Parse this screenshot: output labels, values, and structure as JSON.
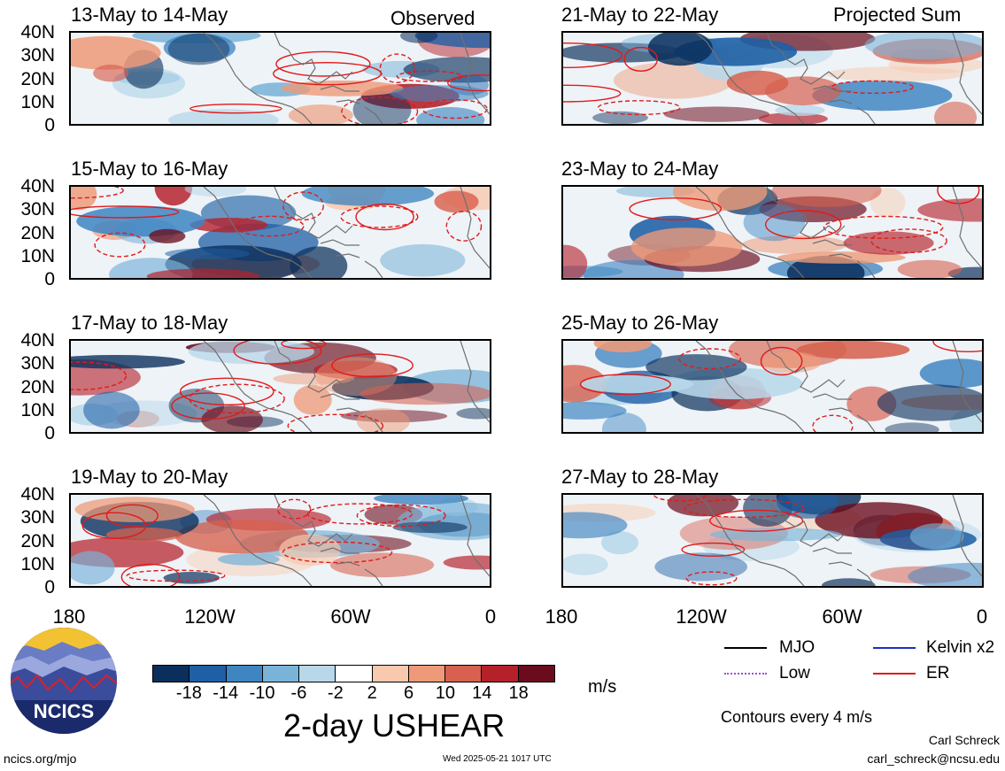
{
  "header": {
    "left_tag": "Observed",
    "right_tag": "Projected Sum"
  },
  "panels_left": [
    {
      "title": "13-May to 14-May"
    },
    {
      "title": "15-May to 16-May"
    },
    {
      "title": "17-May to 18-May"
    },
    {
      "title": "19-May to 20-May"
    }
  ],
  "panels_right": [
    {
      "title": "21-May to 22-May"
    },
    {
      "title": "23-May to 24-May"
    },
    {
      "title": "25-May to 26-May"
    },
    {
      "title": "27-May to 28-May"
    }
  ],
  "y_axis": [
    "40N",
    "30N",
    "20N",
    "10N",
    "0"
  ],
  "x_axis": [
    "180",
    "120W",
    "60W",
    "0"
  ],
  "colorbar": {
    "labels": [
      "-18",
      "-14",
      "-10",
      "-6",
      "-2",
      "2",
      "6",
      "10",
      "14",
      "18"
    ],
    "colors": [
      "#0b2f5c",
      "#1e5fa5",
      "#3f85c2",
      "#7ab3d8",
      "#b8d8ea",
      "#ffffff",
      "#f8c9ae",
      "#ee9a78",
      "#d7604e",
      "#b5212b",
      "#6b0c1c"
    ],
    "units": "m/s"
  },
  "main_title": "2-day USHEAR",
  "legend": {
    "items": [
      {
        "label": "MJO",
        "color": "#000000"
      },
      {
        "label": "Kelvin x2",
        "color": "#1c2fc4"
      },
      {
        "label": "Low",
        "color": "#9b4fd6"
      },
      {
        "label": "ER",
        "color": "#e21a1a"
      }
    ],
    "contour_note": "Contours every 4 m/s"
  },
  "logo": {
    "text": "NCICS"
  },
  "footer": {
    "url": "ncics.org/mjo",
    "timestamp": "Wed 2025-05-21 1017 UTC",
    "author": "Carl Schreck",
    "email": "carl_schreck@ncsu.edu"
  }
}
